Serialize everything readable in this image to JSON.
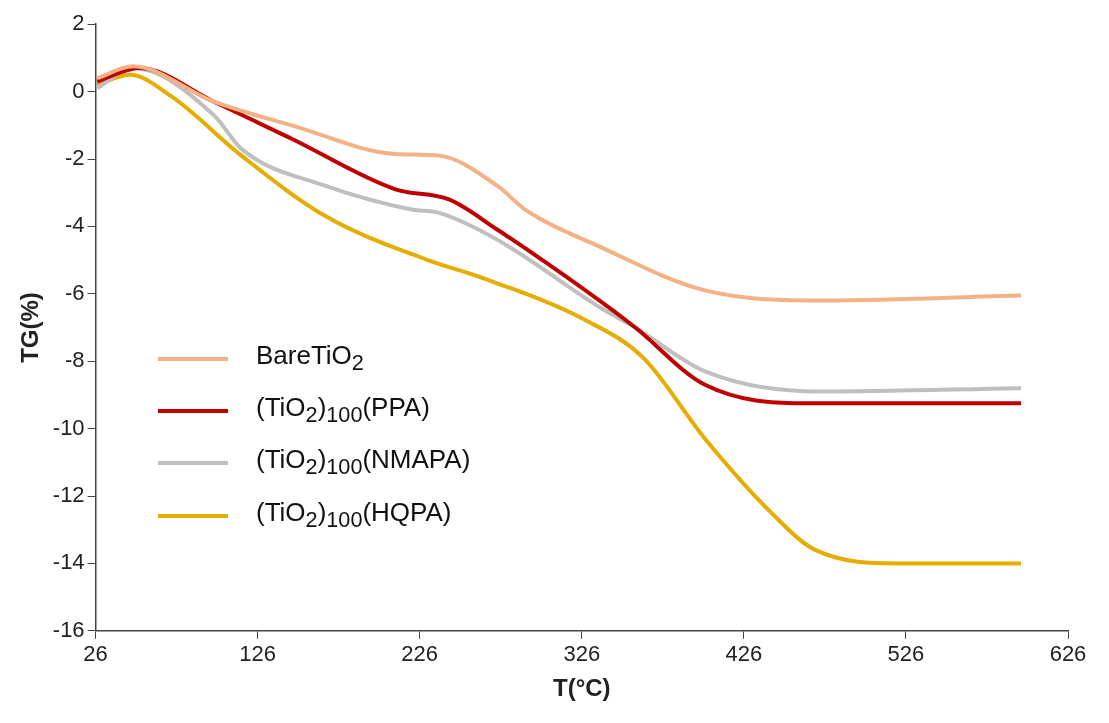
{
  "chart_data": {
    "type": "line",
    "xlabel": "T(°C)",
    "ylabel": "TG(%)",
    "xlim": [
      26,
      626
    ],
    "xticks": [
      26,
      126,
      226,
      326,
      426,
      526,
      626
    ],
    "ylim": [
      -16,
      2
    ],
    "yticks": [
      -16,
      -14,
      -12,
      -10,
      -8,
      -6,
      -4,
      -2,
      0,
      2
    ],
    "grid": false,
    "legend": "center left",
    "marker": "none",
    "line_style": "solid",
    "series": [
      {
        "name": "BareTiO$_{2}$",
        "color": "#f4b183",
        "x": [
          27,
          49,
          99,
          147,
          211,
          238,
          274,
          291,
          337,
          402,
          477,
          597
        ],
        "values": [
          0.4,
          0.75,
          -0.3,
          -1.0,
          -1.85,
          -1.9,
          -2.8,
          -3.5,
          -4.6,
          -5.9,
          -6.2,
          -6.05
        ]
      },
      {
        "name": "(TiO$_{2}$)$_{100}$(PPA)",
        "color": "#c00000",
        "x": [
          27,
          53,
          99,
          147,
          211,
          244,
          274,
          337,
          359,
          402,
          465,
          597
        ],
        "values": [
          0.3,
          0.7,
          -0.3,
          -1.4,
          -2.9,
          -3.2,
          -4.1,
          -6.2,
          -7.0,
          -8.7,
          -9.25,
          -9.25
        ]
      },
      {
        "name": "(TiO$_{2}$)$_{100}$(NMAPA)",
        "color": "#bfbfbf",
        "x": [
          27,
          49,
          99,
          116,
          168,
          221,
          238,
          274,
          337,
          359,
          402,
          472,
          597
        ],
        "values": [
          0.1,
          0.7,
          -0.7,
          -1.7,
          -2.8,
          -3.5,
          -3.6,
          -4.4,
          -6.4,
          -7.0,
          -8.3,
          -8.9,
          -8.8
        ]
      },
      {
        "name": "(TiO$_{2}$)$_{100}$(HQPA)",
        "color": "#e6ac00",
        "x": [
          27,
          47,
          73,
          116,
          168,
          231,
          263,
          329,
          364,
          402,
          443,
          470,
          522,
          597
        ],
        "values": [
          0.2,
          0.5,
          -0.15,
          -1.9,
          -3.7,
          -5.0,
          -5.5,
          -6.8,
          -7.9,
          -10.3,
          -12.5,
          -13.6,
          -14.0,
          -14.0
        ]
      }
    ]
  }
}
